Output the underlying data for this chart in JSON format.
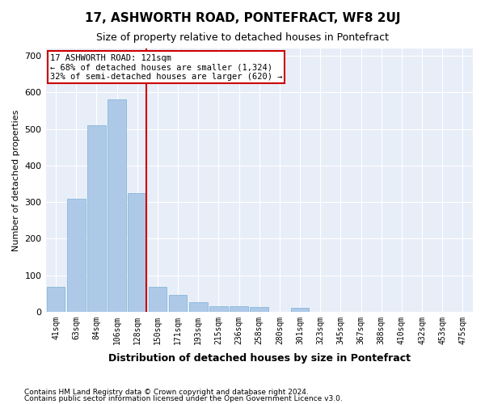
{
  "title1": "17, ASHWORTH ROAD, PONTEFRACT, WF8 2UJ",
  "title2": "Size of property relative to detached houses in Pontefract",
  "xlabel": "Distribution of detached houses by size in Pontefract",
  "ylabel": "Number of detached properties",
  "footnote1": "Contains HM Land Registry data © Crown copyright and database right 2024.",
  "footnote2": "Contains public sector information licensed under the Open Government Licence v3.0.",
  "annotation_line1": "17 ASHWORTH ROAD: 121sqm",
  "annotation_line2": "← 68% of detached houses are smaller (1,324)",
  "annotation_line3": "32% of semi-detached houses are larger (620) →",
  "bar_labels": [
    "41sqm",
    "63sqm",
    "84sqm",
    "106sqm",
    "128sqm",
    "150sqm",
    "171sqm",
    "193sqm",
    "215sqm",
    "236sqm",
    "258sqm",
    "280sqm",
    "301sqm",
    "323sqm",
    "345sqm",
    "367sqm",
    "388sqm",
    "410sqm",
    "432sqm",
    "453sqm",
    "475sqm"
  ],
  "bar_values": [
    68,
    310,
    510,
    580,
    325,
    68,
    45,
    25,
    15,
    15,
    12,
    0,
    10,
    0,
    0,
    0,
    0,
    0,
    0,
    0,
    0
  ],
  "bar_color": "#aec9e8",
  "bar_edgecolor": "#7aafd4",
  "vline_x": 4,
  "vline_color": "#cc0000",
  "ylim": [
    0,
    720
  ],
  "yticks": [
    0,
    100,
    200,
    300,
    400,
    500,
    600,
    700
  ],
  "annotation_box_color": "#ffcccc",
  "annotation_box_edgecolor": "#cc0000",
  "background_color": "#e8eef8"
}
